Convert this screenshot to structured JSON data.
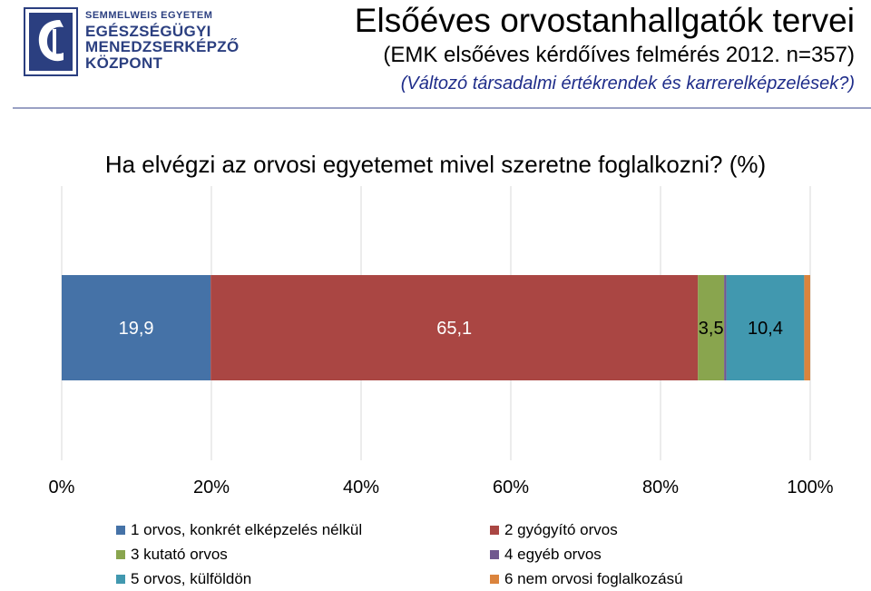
{
  "logo": {
    "line0": "SEMMELWEIS EGYETEM",
    "line1": "EGÉSZSÉGÜGYI",
    "line2": "MENEDZSERKÉPZŐ",
    "line3": "KÖZPONT"
  },
  "header": {
    "title": "Elsőéves orvostanhallgatók tervei",
    "subtitle": "(EMK elsőéves kérdőíves felmérés 2012. n=357)",
    "subtitle2": "(Változó társadalmi értékrendek és karrerelképzelések?)"
  },
  "colors": {
    "s1": "#4572a7",
    "s2": "#aa4643",
    "s3": "#89a54e",
    "s4": "#71588f",
    "s5": "#4198af",
    "s6": "#db843d",
    "logo": "#2b3f80",
    "subtitle2": "#1f2d8a"
  },
  "chart_data": {
    "type": "bar",
    "orientation": "horizontal",
    "stacked": "100%",
    "title": "Ha elvégzi az orvosi egyetemet mivel szeretne foglalkozni? (%)",
    "categories": [
      ""
    ],
    "series": [
      {
        "name": "1 orvos, konkrét elképzelés nélkül",
        "values": [
          19.9
        ],
        "label": "19,9"
      },
      {
        "name": "2 gyógyító orvos",
        "values": [
          65.1
        ],
        "label": "65,1"
      },
      {
        "name": "3 kutató orvos",
        "values": [
          3.5
        ],
        "label": "3,5"
      },
      {
        "name": "4 egyéb orvos",
        "values": [
          0.3
        ],
        "label": ""
      },
      {
        "name": "5 orvos, külföldön",
        "values": [
          10.4
        ],
        "label": "10,4"
      },
      {
        "name": "6 nem orvosi foglalkozású",
        "values": [
          0.8
        ],
        "label": ""
      }
    ],
    "xlim": [
      0,
      100
    ],
    "xticks": [
      "0%",
      "20%",
      "40%",
      "60%",
      "80%",
      "100%"
    ],
    "grid": true,
    "legend_position": "bottom"
  }
}
